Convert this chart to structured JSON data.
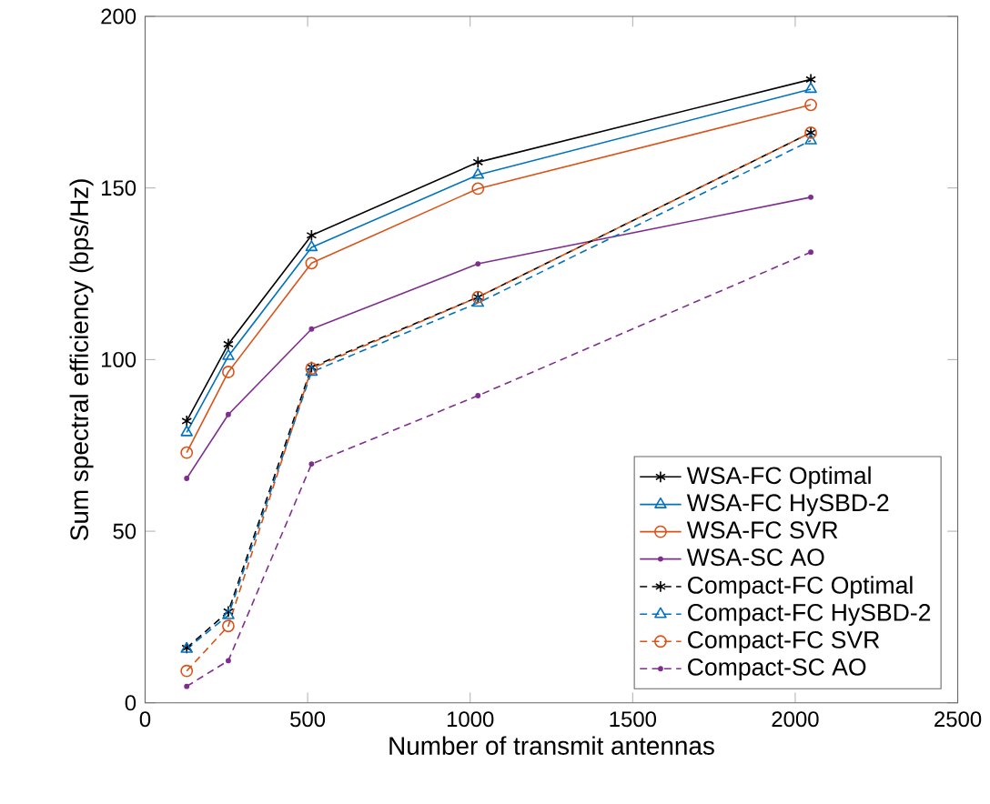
{
  "chart_data": {
    "type": "line",
    "xlabel": "Number of transmit antennas",
    "ylabel": "Sum spectral efficiency (bps/Hz)",
    "x": [
      128,
      256,
      512,
      1024,
      2048
    ],
    "series": [
      {
        "name": "WSA-FC Optimal",
        "color": "#000000",
        "marker": "cross",
        "line_style": "solid",
        "values": [
          82.1,
          104.5,
          136.2,
          157.5,
          181.6
        ]
      },
      {
        "name": "WSA-FC HySBD-2",
        "color": "#0072bd",
        "marker": "triangle",
        "line_style": "solid",
        "values": [
          78.8,
          101,
          132.7,
          153.8,
          178.8
        ]
      },
      {
        "name": "WSA-FC SVR",
        "color": "#d95319",
        "marker": "circle",
        "line_style": "solid",
        "values": [
          72.9,
          96.4,
          128.1,
          149.8,
          174.2
        ]
      },
      {
        "name": "WSA-SC AO",
        "color": "#7e2f8e",
        "marker": "point",
        "line_style": "solid",
        "values": [
          65.4,
          84,
          108.9,
          127.9,
          147.3
        ]
      },
      {
        "name": "Compact-FC Optimal",
        "color": "#000000",
        "marker": "cross",
        "line_style": "dashed",
        "values": [
          16,
          26.6,
          97.8,
          118.2,
          166.1
        ]
      },
      {
        "name": "Compact-FC HySBD-2",
        "color": "#0072bd",
        "marker": "triangle",
        "line_style": "dashed",
        "values": [
          15.7,
          25.5,
          96.4,
          116.5,
          163.8
        ]
      },
      {
        "name": "Compact-FC SVR",
        "color": "#d95319",
        "marker": "circle",
        "line_style": "dashed",
        "values": [
          9.3,
          22.4,
          97.4,
          118.2,
          166.1
        ]
      },
      {
        "name": "Compact-SC AO",
        "color": "#7e2f8e",
        "marker": "point",
        "line_style": "dashed",
        "values": [
          4.8,
          12.3,
          69.6,
          89.5,
          131.3
        ]
      }
    ],
    "xlim": [
      0,
      2500
    ],
    "ylim": [
      0,
      200
    ],
    "xticks": [
      0,
      500,
      1000,
      1500,
      2000,
      2500
    ],
    "yticks": [
      0,
      50,
      100,
      150,
      200
    ],
    "grid": false,
    "legend": "bottom right"
  }
}
